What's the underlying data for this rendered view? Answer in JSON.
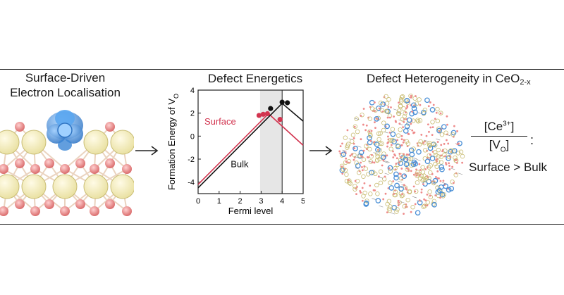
{
  "panels": {
    "left_title": "Surface-Driven Electron Localisation",
    "left_title_lines": [
      "Surface-Driven",
      "Electron Localisation"
    ],
    "middle_title": "Defect Energetics",
    "right_title_main": "Defect Heterogeneity in CeO",
    "right_title_sub": "2-x"
  },
  "equation": {
    "numerator_main": "[Ce",
    "numerator_sup": "3+",
    "numerator_end": "]",
    "denominator_main": "[V",
    "denominator_sub": "O",
    "denominator_end": "]",
    "colon": ":",
    "comparison": "Surface > Bulk"
  },
  "colors": {
    "surface": "#d2344f",
    "bulk": "#111111",
    "shade": "#e6e6e6",
    "ce_atom": "#f7f1c4",
    "o_atom": "#ee8a8a",
    "orbital": "#4a8fd6"
  },
  "chart_data": {
    "type": "line",
    "xlabel": "Fermi level",
    "ylabel_main": "Formation Energy of V",
    "ylabel_sub": "O",
    "xlim": [
      0,
      5
    ],
    "ylim": [
      -5,
      4
    ],
    "xticks": [
      0,
      1,
      2,
      3,
      4,
      5
    ],
    "yticks": [
      -4,
      -2,
      0,
      2,
      4
    ],
    "shaded_region": [
      2.95,
      4.0
    ],
    "vertical_line_x": 4.0,
    "series": [
      {
        "name": "Surface",
        "color": "#d2344f",
        "x": [
          0,
          3.35,
          5
        ],
        "y": [
          -4.2,
          1.95,
          -0.8
        ],
        "markers": [
          [
            2.9,
            1.8
          ],
          [
            3.1,
            1.9
          ],
          [
            3.3,
            1.95
          ],
          [
            3.9,
            1.45
          ]
        ]
      },
      {
        "name": "Bulk",
        "color": "#111111",
        "x": [
          0,
          4.0,
          5
        ],
        "y": [
          -4.5,
          2.85,
          1.3
        ],
        "markers": [
          [
            3.45,
            2.4
          ],
          [
            4.0,
            2.95
          ],
          [
            4.25,
            2.9
          ]
        ]
      }
    ],
    "annotations": [
      {
        "text": "Surface",
        "x": 0.3,
        "y": 1.0,
        "color": "#d2344f"
      },
      {
        "text": "Bulk",
        "x": 1.55,
        "y": -2.7,
        "color": "#111111"
      }
    ]
  }
}
